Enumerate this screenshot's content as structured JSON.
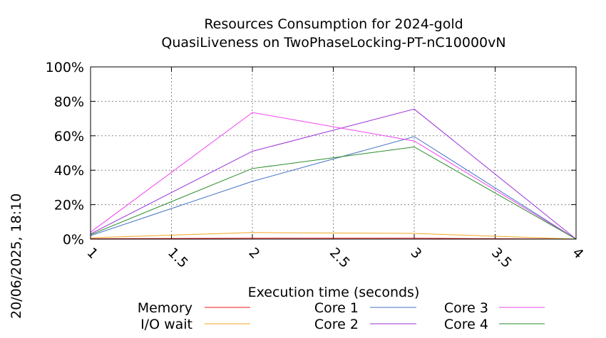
{
  "chart_data": {
    "type": "line",
    "title_lines": [
      "Resources Consumption for 2024-gold",
      "QuasiLiveness on TwoPhaseLocking-PT-nC10000vN"
    ],
    "xlabel": "Execution time (seconds)",
    "ylabel": "",
    "timestamp": "20/06/2025, 18:10",
    "x": [
      1,
      2,
      3,
      4
    ],
    "xlim": [
      1,
      4
    ],
    "ylim": [
      0,
      100
    ],
    "x_ticks": [
      1,
      1.5,
      2,
      2.5,
      3,
      3.5,
      4
    ],
    "x_tick_labels": [
      "1",
      "1.5",
      "2",
      "2.5",
      "3",
      "3.5",
      "4"
    ],
    "y_ticks": [
      0,
      20,
      40,
      60,
      80,
      100
    ],
    "y_tick_labels": [
      "0%",
      "20%",
      "40%",
      "60%",
      "80%",
      "100%"
    ],
    "grid": true,
    "legend_position": "bottom",
    "series": [
      {
        "name": "Memory",
        "color": "#e8191e",
        "values": [
          0.2,
          0.5,
          0.5,
          0
        ]
      },
      {
        "name": "I/O wait",
        "color": "#f5a623",
        "values": [
          0.8,
          3.8,
          3.3,
          0
        ]
      },
      {
        "name": "Core 1",
        "color": "#4472c4",
        "values": [
          2.0,
          33.5,
          59.5,
          0
        ]
      },
      {
        "name": "Core 2",
        "color": "#9b30d9",
        "values": [
          3.0,
          51.0,
          75.5,
          0
        ]
      },
      {
        "name": "Core 3",
        "color": "#ee44ee",
        "values": [
          4.0,
          73.5,
          57.0,
          0
        ]
      },
      {
        "name": "Core 4",
        "color": "#2a8c2a",
        "values": [
          2.5,
          41.0,
          53.5,
          0
        ]
      }
    ]
  }
}
